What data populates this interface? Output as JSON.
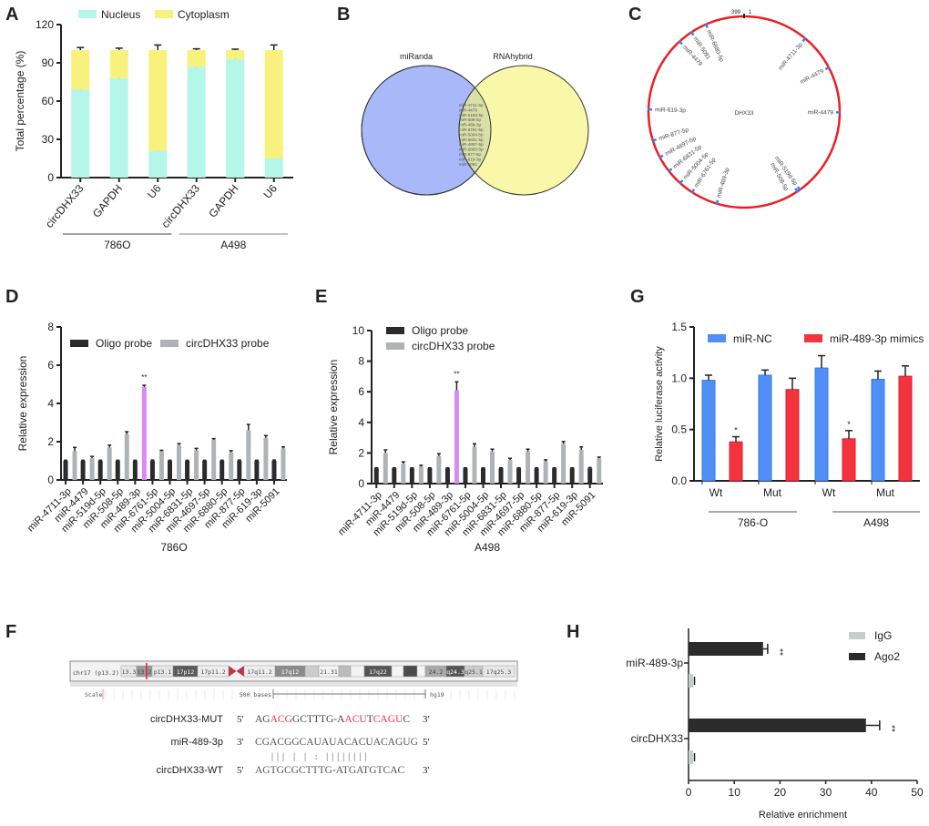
{
  "panels": {
    "A": {
      "letter": "A"
    },
    "B": {
      "letter": "B",
      "left_set": "miRanda",
      "right_set": "RNAhybrid",
      "left_color": "#a8b8f8",
      "right_color": "#f8f8a8",
      "overlap_color": "#d8e0a8",
      "overlap_items": [
        "miR-4711-3p",
        "miR-4479",
        "miR-519d-5p",
        "miR-508-5p",
        "miR-489-3p",
        "miR-6761-5p",
        "miR-5004-5p",
        "miR-6831-5p",
        "miR-4697-5p",
        "miR-6880-5p",
        "miR-877-5p",
        "miR-619-3p",
        "miR-5091"
      ]
    },
    "C": {
      "letter": "C",
      "center_label": "DHX33",
      "start_label": "399",
      "end_label": "1",
      "length_nt": 399,
      "ring_color": "#ee1c24",
      "site_color": "#3a7ee8",
      "sites": [
        {
          "label": "miR-4711-3p",
          "pos": 44
        },
        {
          "label": "miR-4479",
          "pos": 69
        },
        {
          "label": "miR-4479",
          "pos": 100
        },
        {
          "label": "miR-519d-5p",
          "pos": 160
        },
        {
          "label": "miR-508-5p",
          "pos": 162
        },
        {
          "label": "miR-489-3p",
          "pos": 218
        },
        {
          "label": "miR-6761-5p",
          "pos": 236
        },
        {
          "label": "miR-5004-5p",
          "pos": 246
        },
        {
          "label": "miR-6831-5p",
          "pos": 257
        },
        {
          "label": "miR-4697-5p",
          "pos": 268
        },
        {
          "label": "miR-877-5p",
          "pos": 280
        },
        {
          "label": "miR-619-3p",
          "pos": 301
        },
        {
          "label": "miR-4479",
          "pos": 352
        },
        {
          "label": "miR-5091",
          "pos": 362
        },
        {
          "label": "miR-6880-5p",
          "pos": 373
        }
      ]
    },
    "D": {
      "letter": "D"
    },
    "E": {
      "letter": "E"
    },
    "F": {
      "letter": "F",
      "chrom_label": "chr17 (p13.2)",
      "bands": [
        {
          "label": "13.3",
          "color": "#e8e8e8"
        },
        {
          "label": "13.2",
          "color": "#9a9a9a"
        },
        {
          "label": "p13.1",
          "color": "#e8e8e8"
        },
        {
          "label": "17p12",
          "color": "#5a5a5a"
        },
        {
          "label": "17p11.2",
          "color": "#eeeeee"
        },
        {
          "label": "",
          "color": "#c0334a"
        },
        {
          "label": "17q11.2",
          "color": "#eeeeee"
        },
        {
          "label": "17q12",
          "color": "#8a8a8a"
        },
        {
          "label": "",
          "color": "#cccccc"
        },
        {
          "label": "21.31",
          "color": "#f4f4f4"
        },
        {
          "label": "",
          "color": "#bbbbbb"
        },
        {
          "label": "",
          "color": "#f4f4f4"
        },
        {
          "label": "17q22",
          "color": "#555555"
        },
        {
          "label": "",
          "color": "#f4f4f4"
        },
        {
          "label": "",
          "color": "#4a4a4a"
        },
        {
          "label": "",
          "color": "#f4f4f4"
        },
        {
          "label": "24.2",
          "color": "#aaaaaa"
        },
        {
          "label": "q24.3",
          "color": "#555555"
        },
        {
          "label": "q25.1",
          "color": "#cccccc"
        },
        {
          "label": "17q25.3",
          "color": "#e8e8e8"
        }
      ],
      "scale_label": "Scale",
      "scale_bar_label": "500 bases",
      "assembly_label": "hg19",
      "mut_name": "circDHX33-MUT",
      "mut_5": "5'",
      "mut_3": "3'",
      "mut_segments": [
        {
          "t": "AG",
          "red": false
        },
        {
          "t": "ACG",
          "red": true
        },
        {
          "t": "GCTTTG-A",
          "red": false
        },
        {
          "t": "ACU",
          "red": true
        },
        {
          "t": "T",
          "red": false
        },
        {
          "t": "CAGU",
          "red": true
        },
        {
          "t": "C",
          "red": false
        }
      ],
      "mir_name": "miR-489-3p",
      "mir_3": "3'",
      "mir_seq": "CGACGGCAUAUACACUACAGUG",
      "mir_5": "5'",
      "pairing": "|||  | | :  ||||||||",
      "wt_name": "circDHX33-WT",
      "wt_5": "5'",
      "wt_seq": "AGTGCGCTTTG-ATGATGTCAC",
      "wt_3": "3'"
    },
    "G": {
      "letter": "G"
    },
    "H": {
      "letter": "H"
    }
  },
  "chart_data": [
    {
      "panel": "A",
      "type": "bar",
      "stacked": true,
      "ylabel": "Total percentage (%)",
      "ylim": [
        0,
        120
      ],
      "yticks": [
        0,
        30,
        60,
        90,
        120
      ],
      "categories": [
        "circDHX33",
        "GAPDH",
        "U6",
        "circDHX33",
        "GAPDH",
        "U6"
      ],
      "groups": [
        {
          "name": "786O",
          "from": 0,
          "to": 2
        },
        {
          "name": "A498",
          "from": 3,
          "to": 5
        }
      ],
      "legend": "top",
      "series": [
        {
          "name": "Nucleus",
          "color": "#b4f7e8",
          "values": [
            69,
            78,
            21,
            87,
            93,
            15
          ],
          "errors": [
            5,
            2,
            1,
            4,
            2,
            1.5
          ]
        },
        {
          "name": "Cytoplasm",
          "color": "#f8f27c",
          "values": [
            31,
            22,
            79,
            13,
            7,
            85
          ],
          "errors": [
            2,
            1.5,
            4,
            1,
            0.7,
            4
          ]
        }
      ]
    },
    {
      "panel": "D",
      "type": "bar",
      "xlabel": "786O",
      "ylabel": "Relative expression",
      "ylim": [
        0,
        8
      ],
      "yticks": [
        0,
        2,
        4,
        6,
        8
      ],
      "legend": "top",
      "categories": [
        "miR-4711-3p",
        "miR-4479",
        "miR-519d-5p",
        "miR-508-5p",
        "miR-489-3p",
        "miR-6761-5p",
        "miR-5004-5p",
        "miR-6831-5p",
        "miR-4697-5p",
        "miR-6880-5p",
        "miR-877-5p",
        "miR-619-3p",
        "miR-5091"
      ],
      "highlight": {
        "index": 4,
        "color": "#d98af2",
        "annotation": "**"
      },
      "series": [
        {
          "name": "Oligo probe",
          "color": "#2b2b2b",
          "values": [
            1,
            1,
            1,
            1,
            1,
            1,
            1,
            1,
            1,
            1,
            1,
            1,
            1
          ],
          "errors": [
            0.03,
            0.03,
            0.03,
            0.03,
            0.03,
            0.04,
            0.03,
            0.03,
            0.03,
            0.03,
            0.04,
            0.03,
            0.04
          ]
        },
        {
          "name": "circDHX33 probe",
          "color": "#b0b3b6",
          "values": [
            1.5,
            1.15,
            1.7,
            2.4,
            4.85,
            1.5,
            1.8,
            1.55,
            2.1,
            1.45,
            2.6,
            2.2,
            1.65
          ],
          "errors": [
            0.2,
            0.08,
            0.12,
            0.12,
            0.1,
            0.05,
            0.1,
            0.1,
            0.06,
            0.08,
            0.3,
            0.12,
            0.08
          ]
        }
      ]
    },
    {
      "panel": "E",
      "type": "bar",
      "xlabel": "A498",
      "ylabel": "Relative expression",
      "ylim": [
        0,
        10
      ],
      "yticks": [
        0,
        2,
        4,
        6,
        8,
        10
      ],
      "legend": "top-left",
      "categories": [
        "miR-4711-3p",
        "miR-4479",
        "miR-519d-5p",
        "miR-508-5p",
        "miR-489-3p",
        "miR-6761-5p",
        "miR-5004-5p",
        "miR-6831-5p",
        "miR-4697-5p",
        "miR-6880-5p",
        "miR-877-5p",
        "miR-619-3p",
        "miR-5091"
      ],
      "highlight": {
        "index": 4,
        "color": "#d98af2",
        "annotation": "**"
      },
      "series": [
        {
          "name": "Oligo probe",
          "color": "#2b2b2b",
          "values": [
            1,
            1,
            1,
            1,
            1,
            1,
            1,
            1,
            1,
            1,
            1,
            1,
            1
          ],
          "errors": [
            0.03,
            0.03,
            0.03,
            0.03,
            0.03,
            0.03,
            0.03,
            0.03,
            0.03,
            0.03,
            0.03,
            0.03,
            0.05
          ]
        },
        {
          "name": "circDHX33 probe",
          "color": "#b0b3b6",
          "values": [
            2.0,
            1.3,
            1.1,
            1.8,
            6.1,
            2.4,
            2.1,
            1.55,
            2.1,
            1.45,
            2.6,
            2.2,
            1.65
          ],
          "errors": [
            0.2,
            0.12,
            0.1,
            0.15,
            0.55,
            0.2,
            0.15,
            0.1,
            0.15,
            0.1,
            0.15,
            0.2,
            0.08
          ]
        }
      ]
    },
    {
      "panel": "G",
      "type": "bar",
      "ylabel": "Relative luciferase activity",
      "ylim": [
        0,
        1.5
      ],
      "yticks": [
        "0.0",
        "0.5",
        "1.0",
        "1.5"
      ],
      "legend": "top",
      "categories": [
        "Wt",
        "Mut",
        "Wt",
        "Mut"
      ],
      "groups": [
        {
          "name": "786-O",
          "from": 0,
          "to": 1
        },
        {
          "name": "A498",
          "from": 2,
          "to": 3
        }
      ],
      "series": [
        {
          "name": "miR-NC",
          "color": "#4f8ff7",
          "values": [
            0.98,
            1.03,
            1.1,
            0.99
          ],
          "errors": [
            0.05,
            0.05,
            0.12,
            0.08
          ]
        },
        {
          "name": "miR-489-3p mimics",
          "color": "#f5333f",
          "values": [
            0.38,
            0.89,
            0.41,
            1.02
          ],
          "errors": [
            0.05,
            0.11,
            0.08,
            0.1
          ],
          "annotations": [
            "*",
            "",
            "*",
            ""
          ]
        }
      ]
    },
    {
      "panel": "H",
      "type": "bar",
      "orientation": "horizontal",
      "xlabel": "Relative enrichment",
      "xlim": [
        0,
        50
      ],
      "xticks": [
        0,
        10,
        20,
        30,
        40,
        50
      ],
      "legend": "top-right",
      "categories": [
        "miR-489-3p",
        "circDHX33"
      ],
      "series": [
        {
          "name": "IgG",
          "color": "#c8cccc",
          "values": [
            1,
            1
          ],
          "errors": [
            0.3,
            0.3
          ]
        },
        {
          "name": "Ago2",
          "color": "#2b2b2b",
          "values": [
            16.3,
            38.8
          ],
          "errors": [
            1.0,
            3.0
          ],
          "annotations": [
            "**",
            "**"
          ]
        }
      ]
    }
  ]
}
